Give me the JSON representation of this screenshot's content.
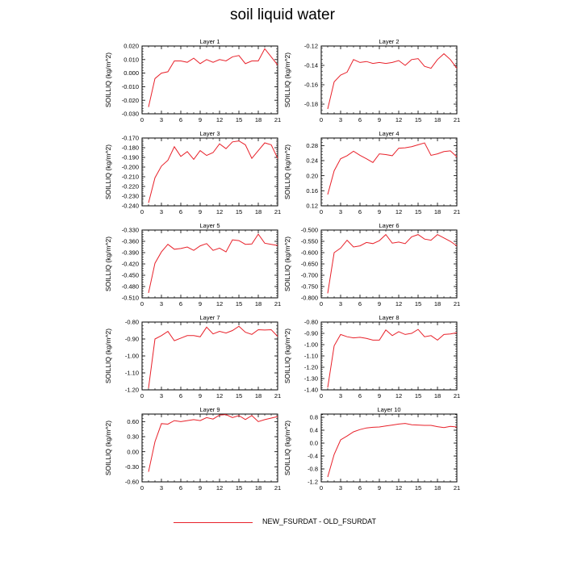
{
  "title": "soil liquid water",
  "legend": {
    "label": "NEW_FSURDAT - OLD_FSURDAT",
    "color": "#e8212a"
  },
  "chart_data": [
    {
      "type": "line",
      "title": "Layer 1",
      "ylabel": "SOILLIQ  (kg/m^2)",
      "xlim": [
        0,
        21
      ],
      "ylim": [
        -0.03,
        0.02
      ],
      "xticks": [
        0,
        3,
        6,
        9,
        12,
        15,
        18,
        21
      ],
      "yticks": [
        -0.03,
        -0.02,
        -0.01,
        0.0,
        0.01,
        0.02
      ],
      "yticklabels": [
        "-0.030",
        "-0.020",
        "-0.010",
        "0.000",
        "0.010",
        "0.020"
      ],
      "series": [
        {
          "color": "#e8212a",
          "x": [
            1,
            2,
            3,
            4,
            5,
            6,
            7,
            8,
            9,
            10,
            11,
            12,
            13,
            14,
            15,
            16,
            17,
            18,
            19,
            20,
            21
          ],
          "y": [
            -0.025,
            -0.004,
            0.0,
            0.001,
            0.009,
            0.009,
            0.008,
            0.011,
            0.007,
            0.01,
            0.008,
            0.01,
            0.009,
            0.012,
            0.013,
            0.007,
            0.009,
            0.009,
            0.018,
            0.012,
            0.006
          ]
        }
      ]
    },
    {
      "type": "line",
      "title": "Layer 2",
      "ylabel": "SOILLIQ  (kg/m^2)",
      "xlim": [
        0,
        21
      ],
      "ylim": [
        -0.19,
        -0.12
      ],
      "xticks": [
        0,
        3,
        6,
        9,
        12,
        15,
        18,
        21
      ],
      "yticks": [
        -0.18,
        -0.16,
        -0.14,
        -0.12
      ],
      "yticklabels": [
        "-0.18",
        "-0.16",
        "-0.14",
        "-0.12"
      ],
      "series": [
        {
          "color": "#e8212a",
          "x": [
            1,
            2,
            3,
            4,
            5,
            6,
            7,
            8,
            9,
            10,
            11,
            12,
            13,
            14,
            15,
            16,
            17,
            18,
            19,
            20,
            21
          ],
          "y": [
            -0.185,
            -0.157,
            -0.15,
            -0.147,
            -0.134,
            -0.137,
            -0.136,
            -0.138,
            -0.137,
            -0.138,
            -0.137,
            -0.135,
            -0.14,
            -0.134,
            -0.133,
            -0.141,
            -0.143,
            -0.134,
            -0.128,
            -0.134,
            -0.143
          ]
        }
      ]
    },
    {
      "type": "line",
      "title": "Layer 3",
      "ylabel": "SOILLIQ  (kg/m^2)",
      "xlim": [
        0,
        21
      ],
      "ylim": [
        -0.24,
        -0.17
      ],
      "xticks": [
        0,
        3,
        6,
        9,
        12,
        15,
        18,
        21
      ],
      "yticks": [
        -0.24,
        -0.23,
        -0.22,
        -0.21,
        -0.2,
        -0.19,
        -0.18,
        -0.17
      ],
      "yticklabels": [
        "-0.240",
        "-0.230",
        "-0.220",
        "-0.210",
        "-0.200",
        "-0.190",
        "-0.180",
        "-0.170"
      ],
      "series": [
        {
          "color": "#e8212a",
          "x": [
            1,
            2,
            3,
            4,
            5,
            6,
            7,
            8,
            9,
            10,
            11,
            12,
            13,
            14,
            15,
            16,
            17,
            18,
            19,
            20,
            21
          ],
          "y": [
            -0.237,
            -0.211,
            -0.199,
            -0.193,
            -0.179,
            -0.189,
            -0.184,
            -0.192,
            -0.183,
            -0.188,
            -0.185,
            -0.176,
            -0.181,
            -0.174,
            -0.173,
            -0.177,
            -0.191,
            -0.183,
            -0.175,
            -0.177,
            -0.191
          ]
        }
      ]
    },
    {
      "type": "line",
      "title": "Layer 4",
      "ylabel": "SOILLIQ  (kg/m^2)",
      "xlim": [
        0,
        21
      ],
      "ylim": [
        0.12,
        0.3
      ],
      "xticks": [
        0,
        3,
        6,
        9,
        12,
        15,
        18,
        21
      ],
      "yticks": [
        0.12,
        0.16,
        0.2,
        0.24,
        0.28
      ],
      "yticklabels": [
        "0.12",
        "0.16",
        "0.20",
        "0.24",
        "0.28"
      ],
      "series": [
        {
          "color": "#e8212a",
          "x": [
            1,
            2,
            3,
            4,
            5,
            6,
            7,
            8,
            9,
            10,
            11,
            12,
            13,
            14,
            15,
            16,
            17,
            18,
            19,
            20,
            21
          ],
          "y": [
            0.15,
            0.213,
            0.245,
            0.253,
            0.265,
            0.254,
            0.245,
            0.235,
            0.258,
            0.256,
            0.253,
            0.273,
            0.274,
            0.277,
            0.282,
            0.287,
            0.254,
            0.258,
            0.264,
            0.266,
            0.25
          ]
        }
      ]
    },
    {
      "type": "line",
      "title": "Layer 5",
      "ylabel": "SOILLIQ  (kg/m^2)",
      "xlim": [
        0,
        21
      ],
      "ylim": [
        -0.51,
        -0.33
      ],
      "xticks": [
        0,
        3,
        6,
        9,
        12,
        15,
        18,
        21
      ],
      "yticks": [
        -0.51,
        -0.48,
        -0.45,
        -0.42,
        -0.39,
        -0.36,
        -0.33
      ],
      "yticklabels": [
        "-0.510",
        "-0.480",
        "-0.450",
        "-0.420",
        "-0.390",
        "-0.360",
        "-0.330"
      ],
      "series": [
        {
          "color": "#e8212a",
          "x": [
            1,
            2,
            3,
            4,
            5,
            6,
            7,
            8,
            9,
            10,
            11,
            12,
            13,
            14,
            15,
            16,
            17,
            18,
            19,
            20,
            21
          ],
          "y": [
            -0.497,
            -0.418,
            -0.388,
            -0.368,
            -0.381,
            -0.379,
            -0.375,
            -0.384,
            -0.372,
            -0.366,
            -0.384,
            -0.378,
            -0.388,
            -0.356,
            -0.358,
            -0.368,
            -0.367,
            -0.341,
            -0.365,
            -0.368,
            -0.371
          ]
        }
      ]
    },
    {
      "type": "line",
      "title": "Layer 6",
      "ylabel": "SOILLIQ  (kg/m^2)",
      "xlim": [
        0,
        21
      ],
      "ylim": [
        -0.8,
        -0.5
      ],
      "xticks": [
        0,
        3,
        6,
        9,
        12,
        15,
        18,
        21
      ],
      "yticks": [
        -0.8,
        -0.75,
        -0.7,
        -0.65,
        -0.6,
        -0.55,
        -0.5
      ],
      "yticklabels": [
        "-0.800",
        "-0.750",
        "-0.700",
        "-0.650",
        "-0.600",
        "-0.550",
        "-0.500"
      ],
      "series": [
        {
          "color": "#e8212a",
          "x": [
            1,
            2,
            3,
            4,
            5,
            6,
            7,
            8,
            9,
            10,
            11,
            12,
            13,
            14,
            15,
            16,
            17,
            18,
            19,
            20,
            21
          ],
          "y": [
            -0.78,
            -0.6,
            -0.58,
            -0.545,
            -0.575,
            -0.57,
            -0.555,
            -0.56,
            -0.547,
            -0.52,
            -0.558,
            -0.553,
            -0.56,
            -0.53,
            -0.52,
            -0.54,
            -0.545,
            -0.52,
            -0.535,
            -0.55,
            -0.57
          ]
        }
      ]
    },
    {
      "type": "line",
      "title": "Layer 7",
      "ylabel": "SOILLIQ  (kg/m^2)",
      "xlim": [
        0,
        21
      ],
      "ylim": [
        -1.2,
        -0.8
      ],
      "xticks": [
        0,
        3,
        6,
        9,
        12,
        15,
        18,
        21
      ],
      "yticks": [
        -1.2,
        -1.1,
        -1.0,
        -0.9,
        -0.8
      ],
      "yticklabels": [
        "-1.20",
        "-1.10",
        "-1.00",
        "-0.90",
        "-0.80"
      ],
      "series": [
        {
          "color": "#e8212a",
          "x": [
            1,
            2,
            3,
            4,
            5,
            6,
            7,
            8,
            9,
            10,
            11,
            12,
            13,
            14,
            15,
            16,
            17,
            18,
            19,
            20,
            21
          ],
          "y": [
            -1.19,
            -0.9,
            -0.88,
            -0.855,
            -0.91,
            -0.895,
            -0.88,
            -0.88,
            -0.887,
            -0.83,
            -0.87,
            -0.855,
            -0.865,
            -0.85,
            -0.825,
            -0.86,
            -0.873,
            -0.845,
            -0.847,
            -0.845,
            -0.885
          ]
        }
      ]
    },
    {
      "type": "line",
      "title": "Layer 8",
      "ylabel": "SOILLIQ  (kg/m^2)",
      "xlim": [
        0,
        21
      ],
      "ylim": [
        -1.4,
        -0.8
      ],
      "xticks": [
        0,
        3,
        6,
        9,
        12,
        15,
        18,
        21
      ],
      "yticks": [
        -1.4,
        -1.3,
        -1.2,
        -1.1,
        -1.0,
        -0.9,
        -0.8
      ],
      "yticklabels": [
        "-1.40",
        "-1.30",
        "-1.20",
        "-1.10",
        "-1.00",
        "-0.90",
        "-0.80"
      ],
      "series": [
        {
          "color": "#e8212a",
          "x": [
            1,
            2,
            3,
            4,
            5,
            6,
            7,
            8,
            9,
            10,
            11,
            12,
            13,
            14,
            15,
            16,
            17,
            18,
            19,
            20,
            21
          ],
          "y": [
            -1.38,
            -1.01,
            -0.91,
            -0.93,
            -0.94,
            -0.935,
            -0.945,
            -0.96,
            -0.96,
            -0.87,
            -0.92,
            -0.885,
            -0.91,
            -0.9,
            -0.865,
            -0.93,
            -0.92,
            -0.96,
            -0.91,
            -0.905,
            -0.895
          ]
        }
      ]
    },
    {
      "type": "line",
      "title": "Layer 9",
      "ylabel": "SOILLIQ  (kg/m^2)",
      "xlim": [
        0,
        21
      ],
      "ylim": [
        -0.6,
        0.75
      ],
      "xticks": [
        0,
        3,
        6,
        9,
        12,
        15,
        18,
        21
      ],
      "yticks": [
        -0.6,
        -0.3,
        0.0,
        0.3,
        0.6
      ],
      "yticklabels": [
        "-0.60",
        "-0.30",
        "0.00",
        "0.30",
        "0.60"
      ],
      "series": [
        {
          "color": "#e8212a",
          "x": [
            1,
            2,
            3,
            4,
            5,
            6,
            7,
            8,
            9,
            10,
            11,
            12,
            13,
            14,
            15,
            16,
            17,
            18,
            19,
            20,
            21
          ],
          "y": [
            -0.4,
            0.2,
            0.56,
            0.55,
            0.62,
            0.6,
            0.62,
            0.64,
            0.62,
            0.68,
            0.65,
            0.73,
            0.74,
            0.68,
            0.72,
            0.64,
            0.72,
            0.6,
            0.64,
            0.67,
            0.7
          ]
        }
      ]
    },
    {
      "type": "line",
      "title": "Layer 10",
      "ylabel": "SOILLIQ  (kg/m^2)",
      "xlim": [
        0,
        21
      ],
      "ylim": [
        -1.2,
        0.9
      ],
      "xticks": [
        0,
        3,
        6,
        9,
        12,
        15,
        18,
        21
      ],
      "yticks": [
        -1.2,
        -0.8,
        -0.4,
        0.0,
        0.4,
        0.8
      ],
      "yticklabels": [
        "-1.2",
        "-0.8",
        "-0.4",
        "0.0",
        "0.4",
        "0.8"
      ],
      "series": [
        {
          "color": "#e8212a",
          "x": [
            1,
            2,
            3,
            4,
            5,
            6,
            7,
            8,
            9,
            10,
            11,
            12,
            13,
            14,
            15,
            16,
            17,
            18,
            19,
            20,
            21
          ],
          "y": [
            -1.05,
            -0.35,
            0.1,
            0.22,
            0.35,
            0.42,
            0.47,
            0.49,
            0.5,
            0.53,
            0.56,
            0.59,
            0.61,
            0.57,
            0.56,
            0.55,
            0.55,
            0.51,
            0.48,
            0.52,
            0.5
          ]
        }
      ]
    }
  ]
}
